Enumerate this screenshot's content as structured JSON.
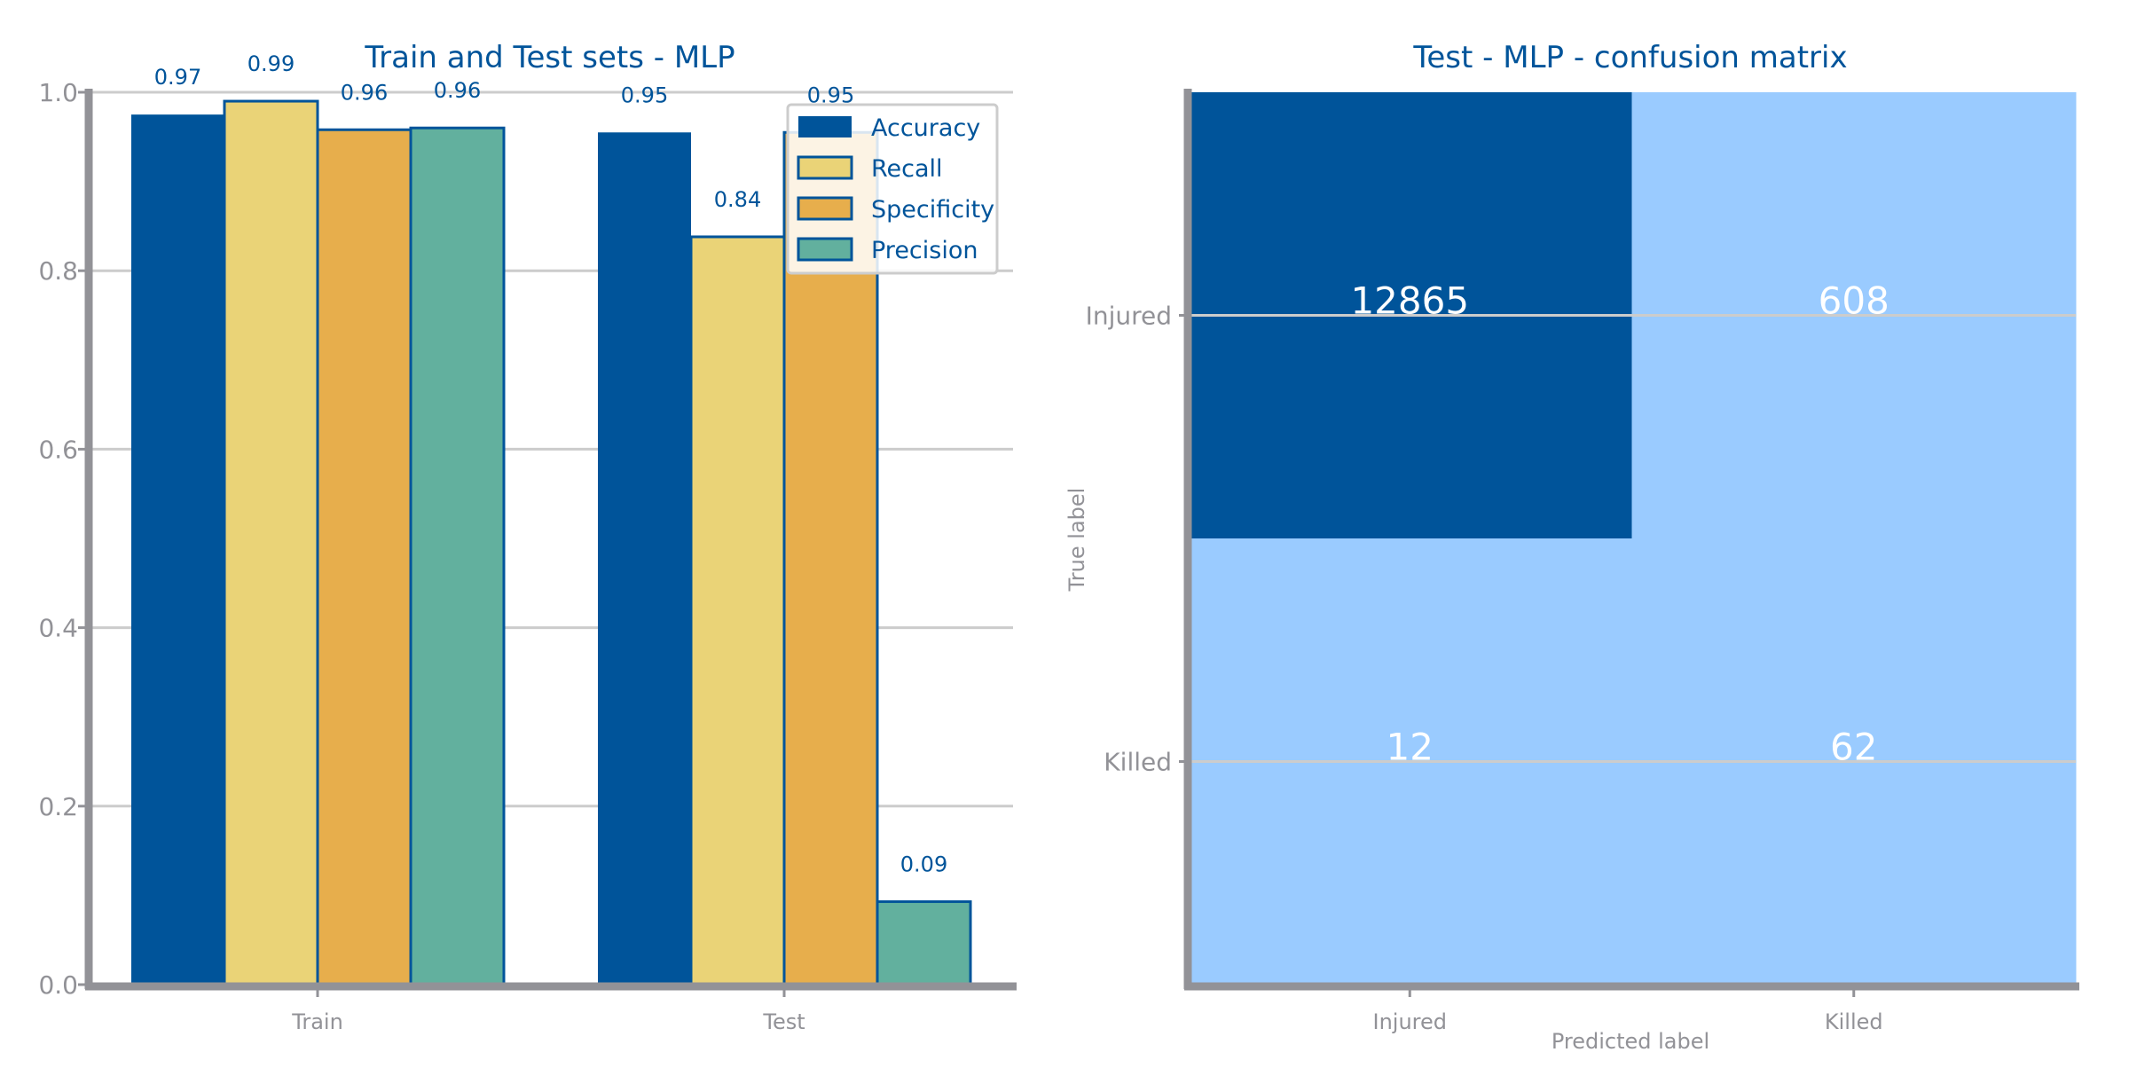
{
  "colors": {
    "accent": "#00549a",
    "accuracy": "#00549a",
    "recall": "#ead377",
    "specificity": "#e7ae4c",
    "precision": "#62b09e",
    "cm_high": "#00549a",
    "cm_low": "#9acbff",
    "grid": "#cccccc",
    "axis": "#929297",
    "tick_text": "#929297"
  },
  "chart_data": [
    {
      "type": "bar",
      "title": "Train and Test sets - MLP",
      "categories": [
        "Train",
        "Test"
      ],
      "series": [
        {
          "name": "Accuracy",
          "values": [
            0.975,
            0.955
          ],
          "labels": [
            "0.97",
            "0.95"
          ]
        },
        {
          "name": "Recall",
          "values": [
            0.99,
            0.838
          ],
          "labels": [
            "0.99",
            "0.84"
          ]
        },
        {
          "name": "Specificity",
          "values": [
            0.958,
            0.955
          ],
          "labels": [
            "0.96",
            "0.95"
          ]
        },
        {
          "name": "Precision",
          "values": [
            0.96,
            0.093
          ],
          "labels": [
            "0.96",
            "0.09"
          ]
        }
      ],
      "ylim": [
        0,
        1.0
      ],
      "yticks": [
        "0.0",
        "0.2",
        "0.4",
        "0.6",
        "0.8",
        "1.0"
      ],
      "xlabel": "",
      "ylabel": "",
      "grid": true,
      "legend": "top-right"
    },
    {
      "type": "heatmap",
      "title": "Test - MLP - confusion matrix",
      "row_labels": [
        "Injured",
        "Killed"
      ],
      "col_labels": [
        "Injured",
        "Killed"
      ],
      "values": [
        [
          12865,
          608
        ],
        [
          12,
          62
        ]
      ],
      "cell_text": [
        [
          "12865",
          "608"
        ],
        [
          "12",
          "62"
        ]
      ],
      "xlabel": "Predicted label",
      "ylabel": "True label"
    }
  ]
}
